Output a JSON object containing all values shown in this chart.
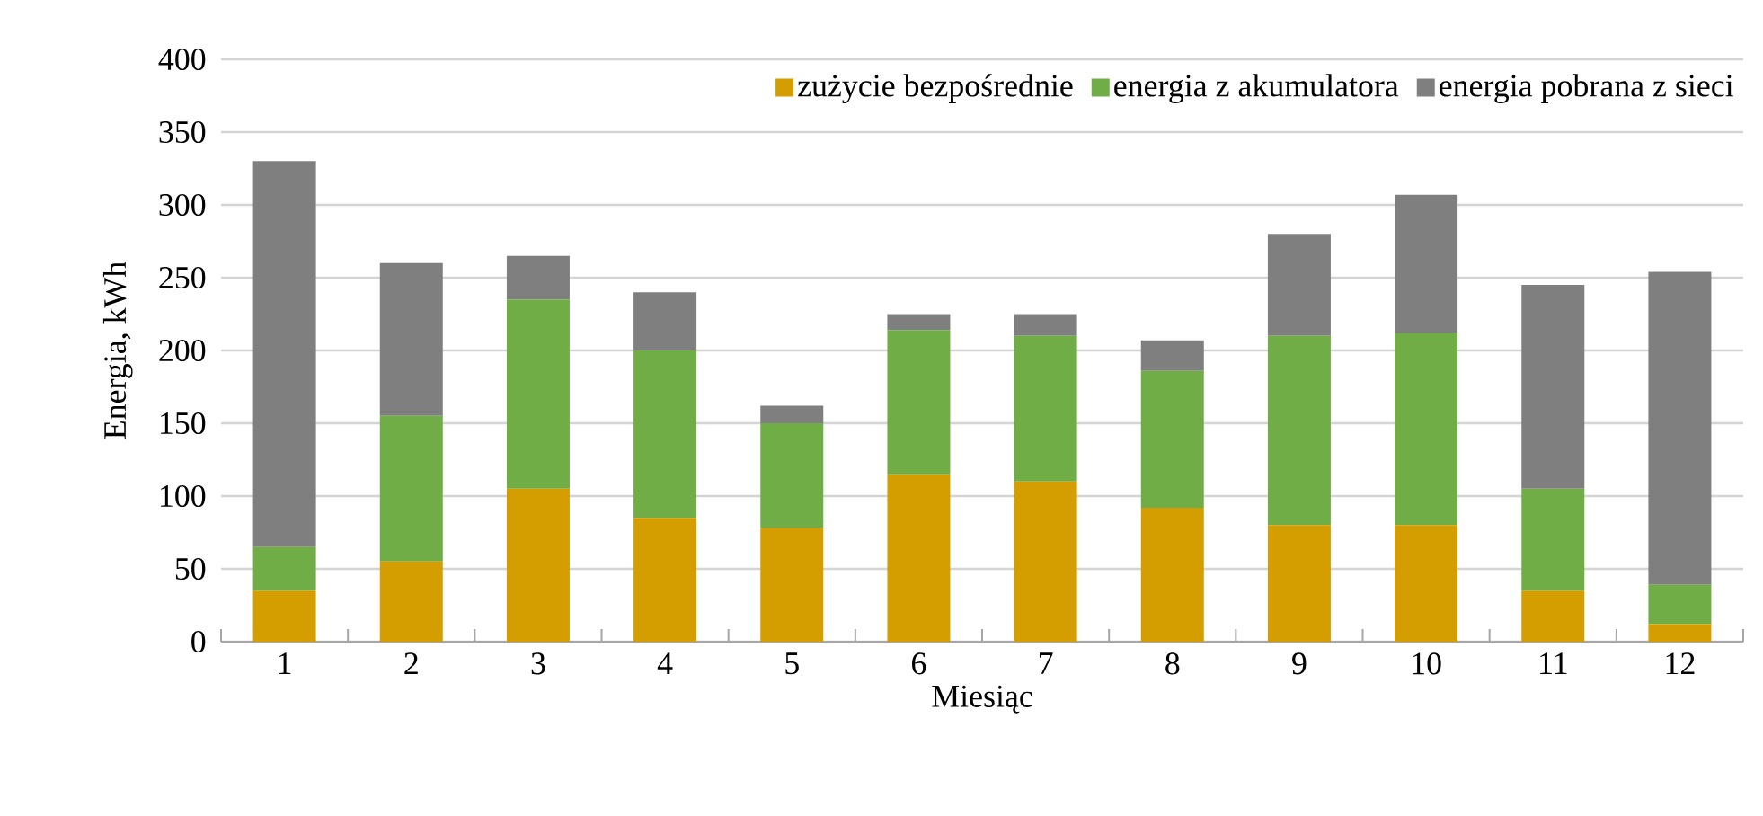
{
  "chart_data": {
    "type": "bar",
    "stacked": true,
    "xlabel": "Miesiąc",
    "ylabel": "Energia, kWh",
    "categories": [
      "1",
      "2",
      "3",
      "4",
      "5",
      "6",
      "7",
      "8",
      "9",
      "10",
      "11",
      "12"
    ],
    "series": [
      {
        "name": "zużycie bezpośrednie",
        "color": "#d49d00",
        "values": [
          35,
          55,
          105,
          85,
          78,
          115,
          110,
          92,
          80,
          80,
          35,
          12
        ]
      },
      {
        "name": "energia z akumulatora",
        "color": "#70ad47",
        "values": [
          30,
          100,
          130,
          115,
          72,
          99,
          100,
          94,
          130,
          132,
          70,
          27
        ]
      },
      {
        "name": "energia pobrana z sieci",
        "color": "#7f7f7f",
        "values": [
          265,
          105,
          30,
          40,
          12,
          11,
          15,
          21,
          70,
          95,
          140,
          215
        ]
      }
    ],
    "ylim": [
      0,
      400
    ],
    "yticks": [
      0,
      50,
      100,
      150,
      200,
      250,
      300,
      350,
      400
    ],
    "grid": "y",
    "legend": "top right"
  }
}
